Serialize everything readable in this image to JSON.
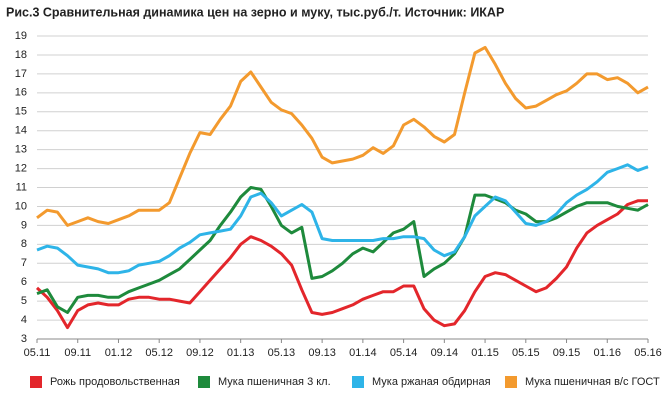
{
  "chart_data": {
    "type": "line",
    "title": "Рис.3   Сравнительная динамика цен на зерно и муку, тыс.руб./т. Источник: ИКАР",
    "categories": [
      "05.11",
      null,
      null,
      null,
      "09.11",
      null,
      null,
      null,
      "01.12",
      null,
      null,
      null,
      "05.12",
      null,
      null,
      null,
      "09.12",
      null,
      null,
      null,
      "01.13",
      null,
      null,
      null,
      "05.13",
      null,
      null,
      null,
      "09.13",
      null,
      null,
      null,
      "01.14",
      null,
      null,
      null,
      "05.14",
      null,
      null,
      null,
      "09.14",
      null,
      null,
      null,
      "01.15",
      null,
      null,
      null,
      "05.15",
      null,
      null,
      null,
      "09.15",
      null,
      null,
      null,
      "01.16",
      null,
      null,
      null,
      "05.16"
    ],
    "ylim": [
      3,
      19
    ],
    "yticks": [
      3,
      4,
      5,
      6,
      7,
      8,
      9,
      10,
      11,
      12,
      13,
      14,
      15,
      16,
      17,
      18,
      19
    ],
    "grid": true,
    "series": [
      {
        "name": "Рожь продовольственная",
        "color": "#e3262b",
        "values": [
          5.7,
          5.2,
          4.5,
          3.6,
          4.5,
          4.8,
          4.9,
          4.8,
          4.8,
          5.1,
          5.2,
          5.2,
          5.1,
          5.1,
          5.0,
          4.9,
          5.5,
          6.1,
          6.7,
          7.3,
          8.0,
          8.4,
          8.2,
          7.9,
          7.5,
          6.9,
          5.6,
          4.4,
          4.3,
          4.4,
          4.6,
          4.8,
          5.1,
          5.3,
          5.5,
          5.5,
          5.8,
          5.8,
          4.6,
          4.0,
          3.7,
          3.8,
          4.5,
          5.5,
          6.3,
          6.5,
          6.4,
          6.1,
          5.8,
          5.5,
          5.7,
          6.2,
          6.8,
          7.8,
          8.6,
          9.0,
          9.3,
          9.6,
          10.1,
          10.3,
          10.3
        ]
      },
      {
        "name": "Мука пшеничная 3 кл.",
        "color": "#1e8a3c",
        "values": [
          5.4,
          5.6,
          4.7,
          4.4,
          5.2,
          5.3,
          5.3,
          5.2,
          5.2,
          5.5,
          5.7,
          5.9,
          6.1,
          6.4,
          6.7,
          7.2,
          7.7,
          8.2,
          9.0,
          9.7,
          10.5,
          11.0,
          10.9,
          10.0,
          9.0,
          8.6,
          8.9,
          6.2,
          6.3,
          6.6,
          7.0,
          7.5,
          7.8,
          7.6,
          8.1,
          8.6,
          8.8,
          9.2,
          6.3,
          6.7,
          7.0,
          7.5,
          8.4,
          10.6,
          10.6,
          10.4,
          10.2,
          9.8,
          9.6,
          9.2,
          9.2,
          9.4,
          9.7,
          10.0,
          10.2,
          10.2,
          10.2,
          10.0,
          9.9,
          9.8,
          10.1
        ]
      },
      {
        "name": "Мука ржаная обдирная",
        "color": "#2eb4e8",
        "values": [
          7.7,
          7.9,
          7.8,
          7.4,
          6.9,
          6.8,
          6.7,
          6.5,
          6.5,
          6.6,
          6.9,
          7.0,
          7.1,
          7.4,
          7.8,
          8.1,
          8.5,
          8.6,
          8.7,
          8.8,
          9.5,
          10.5,
          10.7,
          10.2,
          9.5,
          9.8,
          10.1,
          9.7,
          8.3,
          8.2,
          8.2,
          8.2,
          8.2,
          8.2,
          8.3,
          8.3,
          8.4,
          8.4,
          8.3,
          7.7,
          7.4,
          7.6,
          8.4,
          9.5,
          10.0,
          10.5,
          10.3,
          9.7,
          9.1,
          9.0,
          9.2,
          9.6,
          10.2,
          10.6,
          10.9,
          11.3,
          11.8,
          12.0,
          12.2,
          11.9,
          12.1
        ]
      },
      {
        "name": "Мука пшеничная в/с ГОСТ",
        "color": "#f39a2e",
        "values": [
          9.4,
          9.8,
          9.7,
          9.0,
          9.2,
          9.4,
          9.2,
          9.1,
          9.3,
          9.5,
          9.8,
          9.8,
          9.8,
          10.2,
          11.5,
          12.8,
          13.9,
          13.8,
          14.6,
          15.3,
          16.6,
          17.1,
          16.3,
          15.5,
          15.1,
          14.9,
          14.3,
          13.6,
          12.6,
          12.3,
          12.4,
          12.5,
          12.7,
          13.1,
          12.8,
          13.2,
          14.3,
          14.6,
          14.2,
          13.7,
          13.4,
          13.8,
          16.0,
          18.1,
          18.4,
          17.5,
          16.5,
          15.7,
          15.2,
          15.3,
          15.6,
          15.9,
          16.1,
          16.5,
          17.0,
          17.0,
          16.7,
          16.8,
          16.5,
          16.0,
          16.3
        ]
      }
    ]
  }
}
